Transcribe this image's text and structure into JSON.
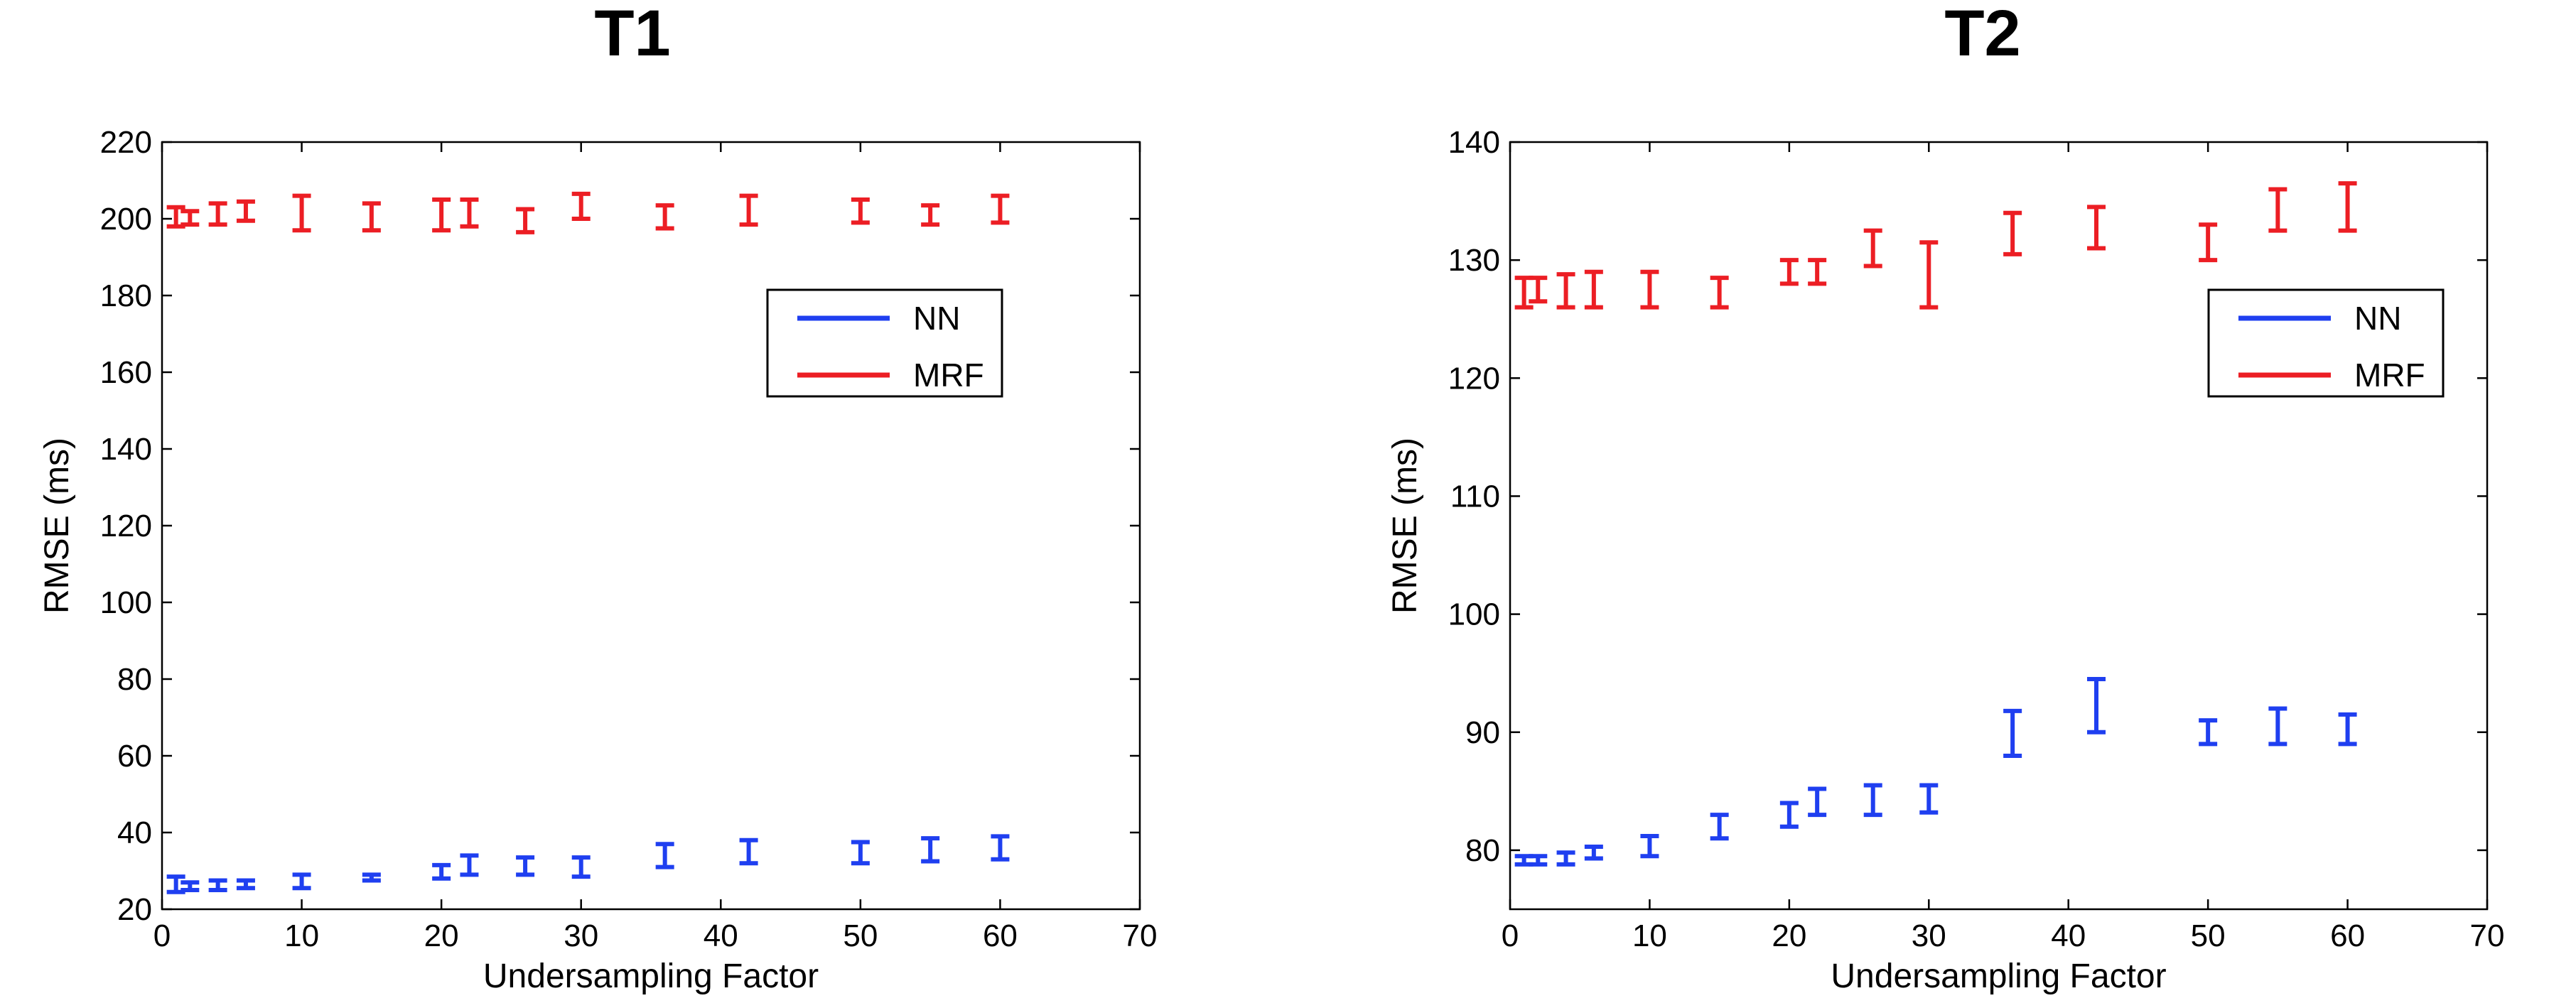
{
  "chart_data": [
    {
      "type": "errorbar",
      "title": "T1",
      "xlabel": "Undersampling Factor",
      "ylabel": "RMSE (ms)",
      "xlim": [
        0,
        70
      ],
      "ylim": [
        20,
        220
      ],
      "xticks": [
        0,
        10,
        20,
        30,
        40,
        50,
        60,
        70
      ],
      "yticks": [
        20,
        40,
        60,
        80,
        100,
        120,
        140,
        160,
        180,
        200,
        220
      ],
      "grid": false,
      "legend": {
        "position": "upper-right",
        "entries": [
          "NN",
          "MRF"
        ]
      },
      "series": [
        {
          "name": "NN",
          "color": "#1f3ff0",
          "x": [
            1,
            2,
            4,
            6,
            10,
            15,
            20,
            22,
            26,
            30,
            36,
            42,
            50,
            55,
            60
          ],
          "low": [
            24.5,
            25,
            25,
            25.5,
            25.5,
            27.5,
            28,
            29,
            29,
            28.5,
            31,
            32,
            32,
            32.5,
            33
          ],
          "high": [
            28.5,
            27,
            27.5,
            27.5,
            29,
            29,
            31.5,
            34,
            33.5,
            33.5,
            37,
            38,
            37.5,
            38.5,
            39
          ]
        },
        {
          "name": "MRF",
          "color": "#ec1e24",
          "x": [
            1,
            2,
            4,
            6,
            10,
            15,
            20,
            22,
            26,
            30,
            36,
            42,
            50,
            55,
            60
          ],
          "low": [
            198,
            198.5,
            198.5,
            199.5,
            197,
            197,
            197,
            198,
            196.5,
            200,
            197.5,
            198.5,
            199,
            198.5,
            199
          ],
          "high": [
            203,
            202,
            204,
            204.5,
            206,
            204,
            205,
            205,
            202.5,
            206.5,
            203.5,
            206,
            205,
            203.5,
            206
          ]
        }
      ]
    },
    {
      "type": "errorbar",
      "title": "T2",
      "xlabel": "Undersampling Factor",
      "ylabel": "RMSE (ms)",
      "xlim": [
        0,
        70
      ],
      "ylim": [
        75,
        140
      ],
      "xticks": [
        0,
        10,
        20,
        30,
        40,
        50,
        60,
        70
      ],
      "yticks": [
        80,
        90,
        100,
        110,
        120,
        130,
        140
      ],
      "grid": false,
      "legend": {
        "position": "upper-right",
        "entries": [
          "NN",
          "MRF"
        ]
      },
      "series": [
        {
          "name": "NN",
          "color": "#1f3ff0",
          "x": [
            1,
            2,
            4,
            6,
            10,
            15,
            20,
            22,
            26,
            30,
            36,
            42,
            50,
            55,
            60
          ],
          "low": [
            78.8,
            78.8,
            78.8,
            79.3,
            79.5,
            81,
            82,
            83,
            83,
            83.2,
            88,
            90,
            89,
            89,
            89
          ],
          "high": [
            79.5,
            79.5,
            79.8,
            80.3,
            81.2,
            83,
            84,
            85.2,
            85.5,
            85.5,
            91.8,
            94.5,
            91,
            92,
            91.5
          ]
        },
        {
          "name": "MRF",
          "color": "#ec1e24",
          "x": [
            1,
            2,
            4,
            6,
            10,
            15,
            20,
            22,
            26,
            30,
            36,
            42,
            50,
            55,
            60
          ],
          "low": [
            126,
            126.5,
            126,
            126,
            126,
            126,
            128,
            128,
            129.5,
            126,
            130.5,
            131,
            130,
            132.5,
            132.5
          ],
          "high": [
            128.5,
            128.5,
            128.8,
            129,
            129,
            128.5,
            130,
            130,
            132.5,
            131.5,
            134,
            134.5,
            133,
            136,
            136.5
          ]
        }
      ]
    }
  ]
}
